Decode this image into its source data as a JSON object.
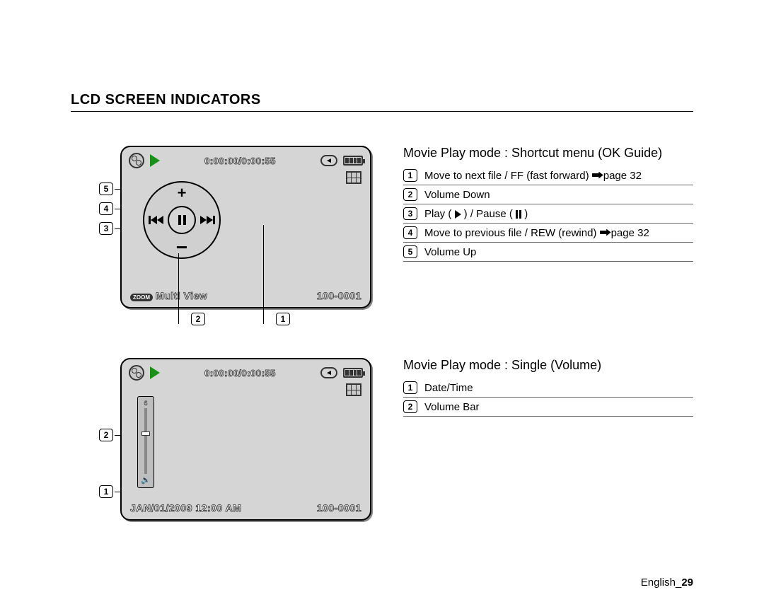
{
  "heading": "LCD SCREEN INDICATORS",
  "section1": {
    "title": "Movie Play mode : Shortcut menu (OK Guide)",
    "items": [
      {
        "n": "1",
        "text": "Move to next file / FF (fast forward) ",
        "ref": "page 32",
        "ptr": true
      },
      {
        "n": "2",
        "text": "Volume Down"
      },
      {
        "n": "3",
        "text": "Play ( ",
        "play": true,
        "mid": " ) / Pause ( ",
        "pause": true,
        "tail": " )"
      },
      {
        "n": "4",
        "text": "Move to previous file / REW (rewind) ",
        "ref": "page 32",
        "ptr": true
      },
      {
        "n": "5",
        "text": "Volume Up"
      }
    ],
    "lcd": {
      "time": "0:00:00/0:00:55",
      "multi": "Multi View",
      "file": "100-0001",
      "callouts_left": [
        "5",
        "4",
        "3"
      ],
      "callouts_under": [
        "2",
        "1"
      ]
    }
  },
  "section2": {
    "title": "Movie Play mode : Single (Volume)",
    "items": [
      {
        "n": "1",
        "text": "Date/Time"
      },
      {
        "n": "2",
        "text": "Volume Bar"
      }
    ],
    "lcd": {
      "time": "0:00:00/0:00:55",
      "date": "JAN/01/2009 12:00 AM",
      "file": "100-0001",
      "vol": "6",
      "callouts_left": [
        "2",
        "1"
      ]
    }
  },
  "footer": {
    "lang": "English",
    "page": "29"
  }
}
